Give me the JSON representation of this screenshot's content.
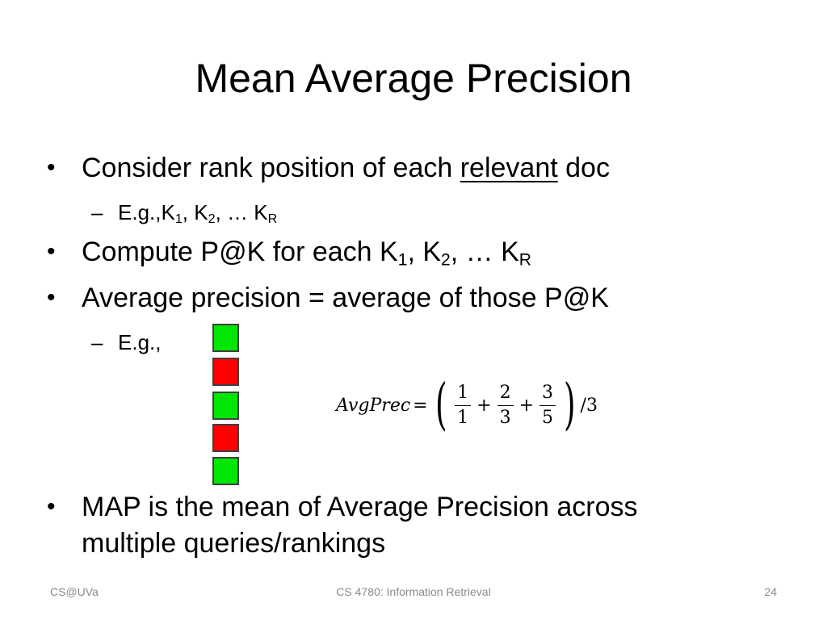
{
  "slide": {
    "title": "Mean Average Precision",
    "bullet1": {
      "text_before": "Consider rank position of each ",
      "underlined": "relevant",
      "text_after": " doc"
    },
    "sub1": {
      "text": "E.g.,K",
      "s1": "1",
      "t2": ", K",
      "s2": "2",
      "t3": ", … K",
      "s3": "R"
    },
    "bullet2": {
      "text": "Compute P@K for each K",
      "s1": "1",
      "t2": ", K",
      "s2": "2",
      "t3": ", … K",
      "s3": "R"
    },
    "bullet3": {
      "text": "Average precision = average of those P@K"
    },
    "sub2": {
      "text": "E.g.,"
    },
    "ranking": [
      {
        "relevant": true,
        "color": "#00e600"
      },
      {
        "relevant": false,
        "color": "#ff0000"
      },
      {
        "relevant": true,
        "color": "#00e600"
      },
      {
        "relevant": false,
        "color": "#ff0000"
      },
      {
        "relevant": true,
        "color": "#00e600"
      }
    ],
    "formula": {
      "lhs": "AvgPrec",
      "equals": "=",
      "terms": [
        {
          "num": "1",
          "den": "1"
        },
        {
          "num": "2",
          "den": "3"
        },
        {
          "num": "3",
          "den": "5"
        }
      ],
      "plus": "+",
      "tail": "/3"
    },
    "bullet4": {
      "line1": "MAP is the mean of Average Precision across",
      "line2": "multiple queries/rankings"
    },
    "footer": {
      "left": "CS@UVa",
      "center": "CS 4780: Information Retrieval",
      "right": "24"
    }
  },
  "bullet_char": "•",
  "dash_char": "–"
}
